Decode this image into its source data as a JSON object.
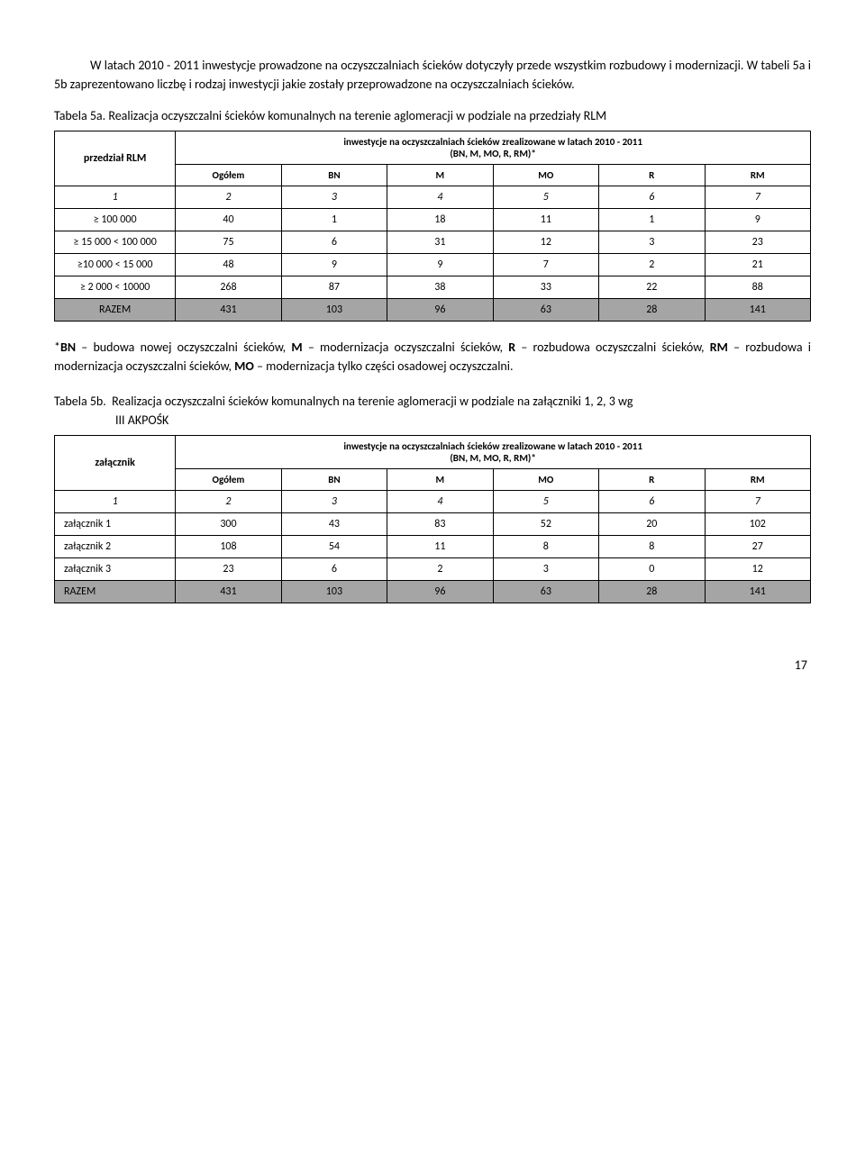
{
  "intro_paragraph": "W latach 2010 - 2011 inwestycje prowadzone na oczyszczalniach ścieków dotyczyły przede wszystkim rozbudowy i modernizacji. W tabeli 5a i 5b zaprezentowano liczbę i rodzaj inwestycji jakie zostały przeprowadzone na oczyszczalniach ścieków.",
  "table5a": {
    "caption": "Tabela 5a. Realizacja oczyszczalni ścieków komunalnych na terenie aglomeracji w podziale na przedziały RLM",
    "rowhead": "przedział RLM",
    "subhead_line1": "inwestycje na oczyszczalniach ścieków zrealizowane w latach 2010 - 2011",
    "subhead_line2": "(BN, M, MO, R, RM)*",
    "columns": [
      "Ogółem",
      "BN",
      "M",
      "MO",
      "R",
      "RM"
    ],
    "num_row": [
      "1",
      "2",
      "3",
      "4",
      "5",
      "6",
      "7"
    ],
    "rows": [
      {
        "label": "≥ 100 000",
        "cells": [
          "40",
          "1",
          "18",
          "11",
          "1",
          "9"
        ]
      },
      {
        "label": "≥ 15 000 < 100 000",
        "cells": [
          "75",
          "6",
          "31",
          "12",
          "3",
          "23"
        ]
      },
      {
        "label": "≥10 000 < 15 000",
        "cells": [
          "48",
          "9",
          "9",
          "7",
          "2",
          "21"
        ]
      },
      {
        "label": "≥ 2 000 < 10000",
        "cells": [
          "268",
          "87",
          "38",
          "33",
          "22",
          "88"
        ]
      }
    ],
    "razem": {
      "label": "RAZEM",
      "cells": [
        "431",
        "103",
        "96",
        "63",
        "28",
        "141"
      ]
    }
  },
  "legend_note_html": "*<b>BN</b> – budowa nowej oczyszczalni ścieków, <b>M</b> – modernizacja oczyszczalni ścieków, <b>R</b> – rozbudowa oczyszczalni ścieków, <b>RM</b> – rozbudowa i modernizacja oczyszczalni ścieków, <b>MO</b> – modernizacja tylko części osadowej oczyszczalni.",
  "table5b": {
    "caption_prefix": "Tabela 5b.",
    "caption_rest": "Realizacja oczyszczalni ścieków komunalnych na terenie aglomeracji w podziale na załączniki 1, 2, 3 wg",
    "caption_cont": "III AKPOŚK",
    "rowhead": "załącznik",
    "subhead_line1": "inwestycje na oczyszczalniach ścieków zrealizowane w latach 2010 - 2011",
    "subhead_line2": "(BN, M, MO, R, RM)*",
    "columns": [
      "Ogółem",
      "BN",
      "M",
      "MO",
      "R",
      "RM"
    ],
    "num_row": [
      "1",
      "2",
      "3",
      "4",
      "5",
      "6",
      "7"
    ],
    "rows": [
      {
        "label": "załącznik 1",
        "cells": [
          "300",
          "43",
          "83",
          "52",
          "20",
          "102"
        ]
      },
      {
        "label": "załącznik 2",
        "cells": [
          "108",
          "54",
          "11",
          "8",
          "8",
          "27"
        ]
      },
      {
        "label": "załącznik 3",
        "cells": [
          "23",
          "6",
          "2",
          "3",
          "0",
          "12"
        ]
      }
    ],
    "razem": {
      "label": "RAZEM",
      "cells": [
        "431",
        "103",
        "96",
        "63",
        "28",
        "141"
      ]
    }
  },
  "page_number": "17"
}
